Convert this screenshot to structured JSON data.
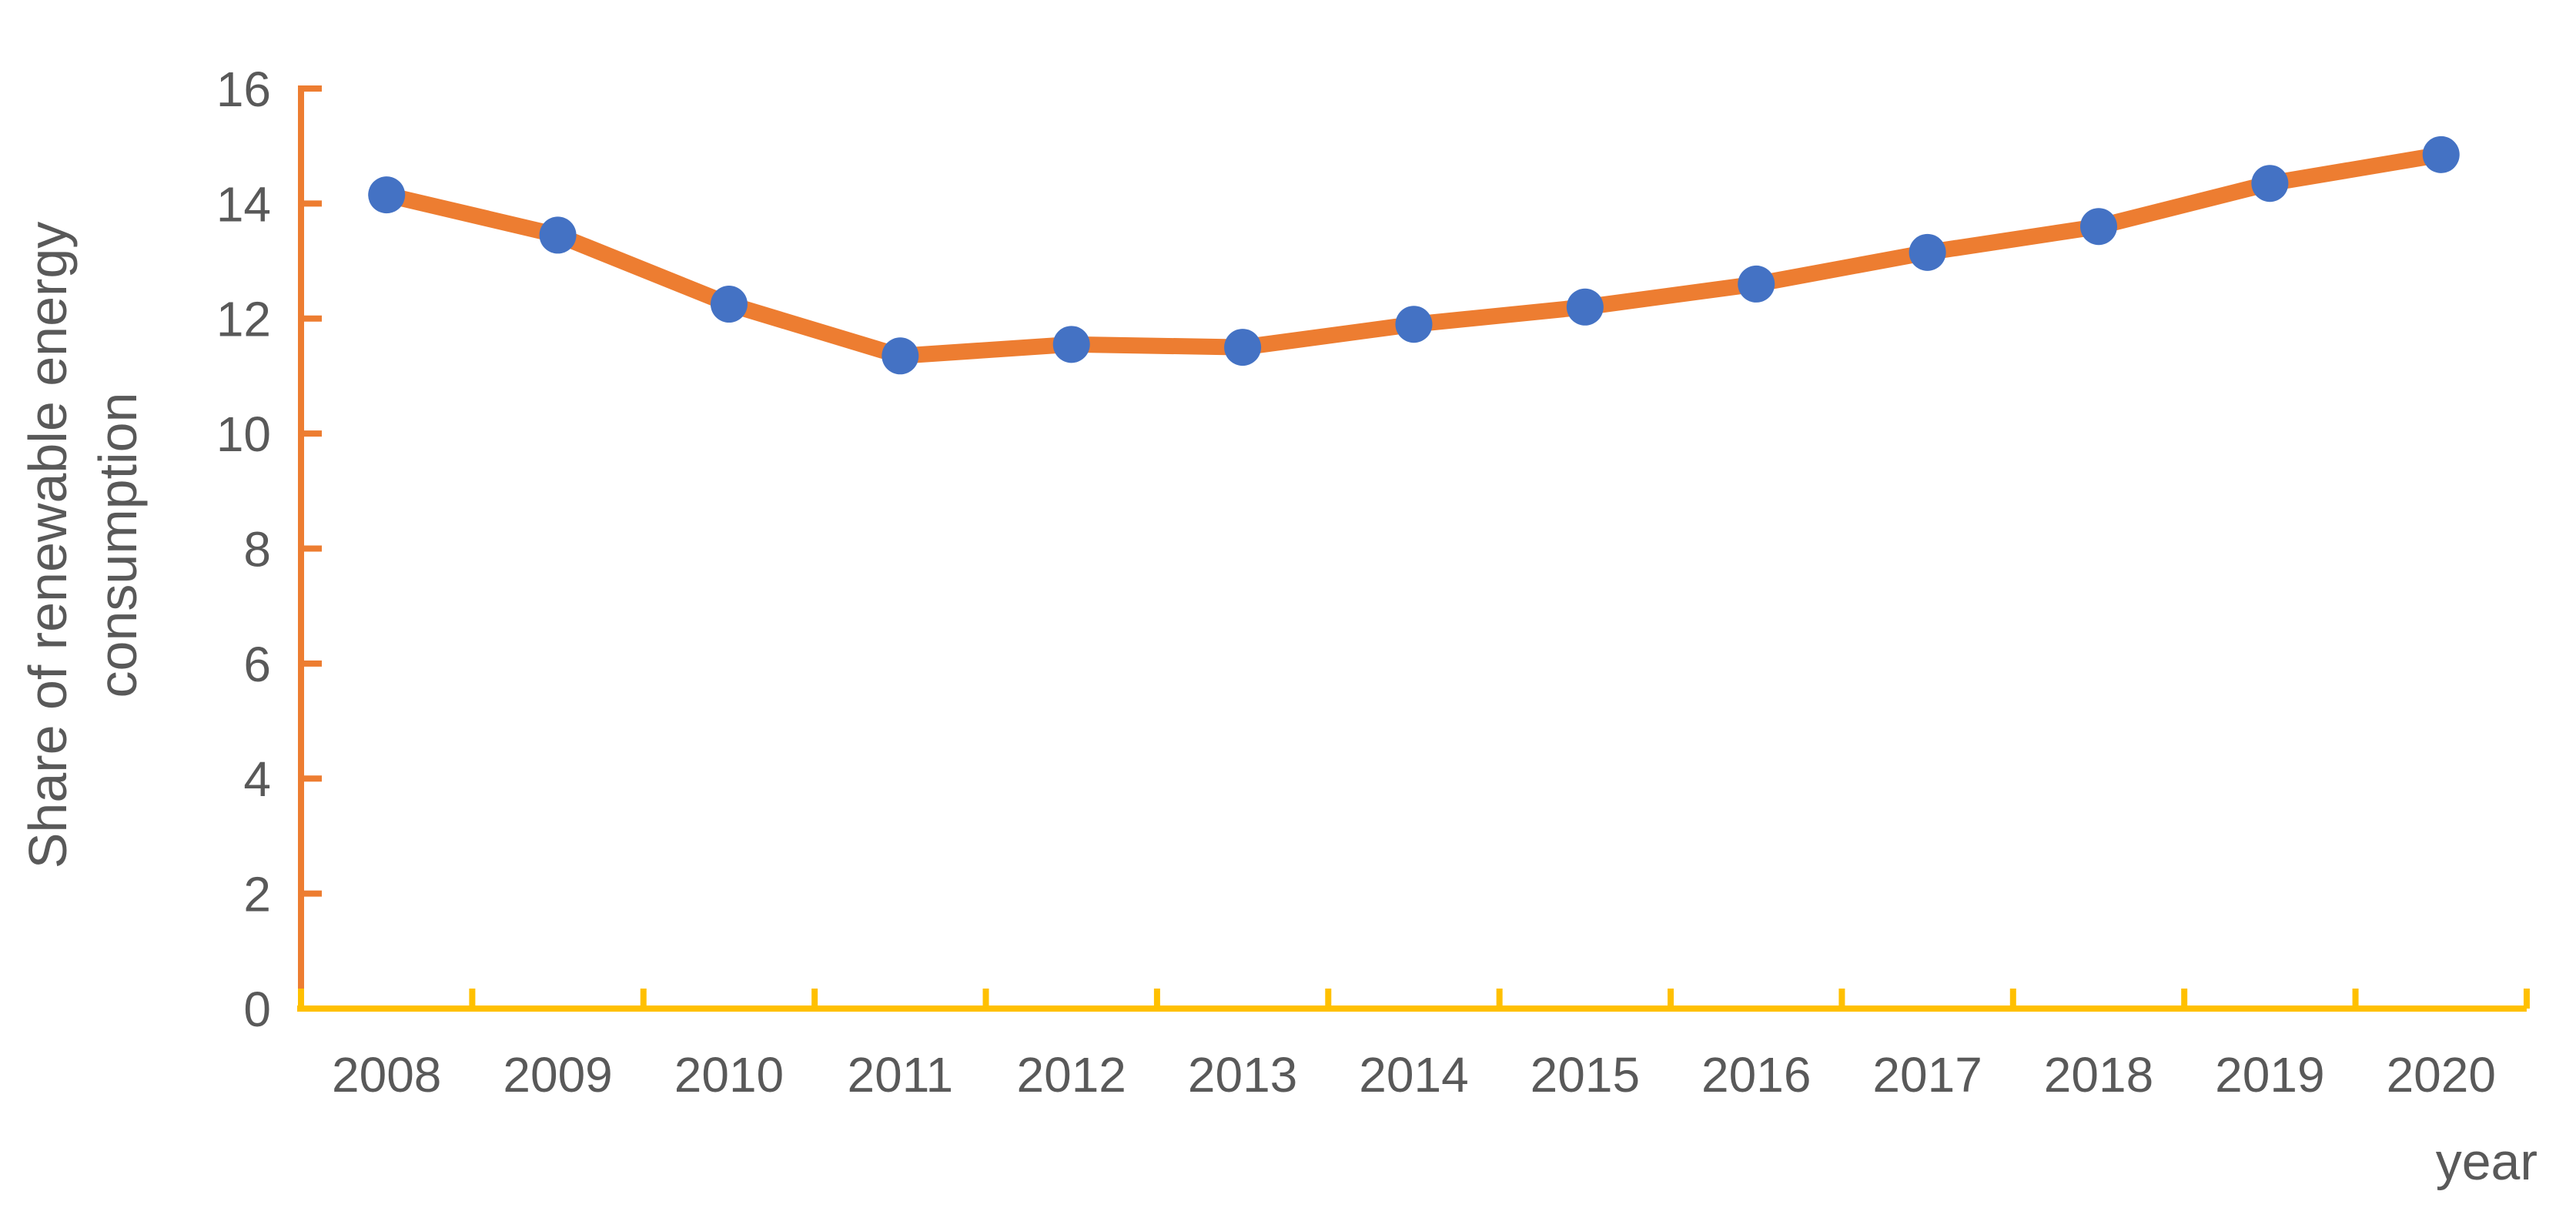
{
  "chart_data": {
    "type": "line",
    "title": "",
    "xlabel": "year",
    "ylabel": "Share of renewable energy consumption",
    "ylabel_lines": [
      "Share of renewable energy",
      "consumption"
    ],
    "categories": [
      "2008",
      "2009",
      "2010",
      "2011",
      "2012",
      "2013",
      "2014",
      "2015",
      "2016",
      "2017",
      "2018",
      "2019",
      "2020"
    ],
    "series": [
      {
        "name": "Share of renewable energy consumption",
        "values": [
          14.15,
          13.45,
          12.25,
          11.35,
          11.55,
          11.5,
          11.9,
          12.2,
          12.6,
          13.15,
          13.6,
          14.35,
          14.85
        ],
        "line_color": "#ED7D31",
        "marker": "circle",
        "marker_color": "#4472C4"
      }
    ],
    "ylim": [
      0,
      16
    ],
    "y_ticks": [
      0,
      2,
      4,
      6,
      8,
      10,
      12,
      14,
      16
    ],
    "grid": false,
    "legend": "none",
    "colors": {
      "y_axis": "#ED7D31",
      "x_axis": "#FFC000",
      "text": "#595959",
      "background": "#FFFFFF"
    }
  }
}
